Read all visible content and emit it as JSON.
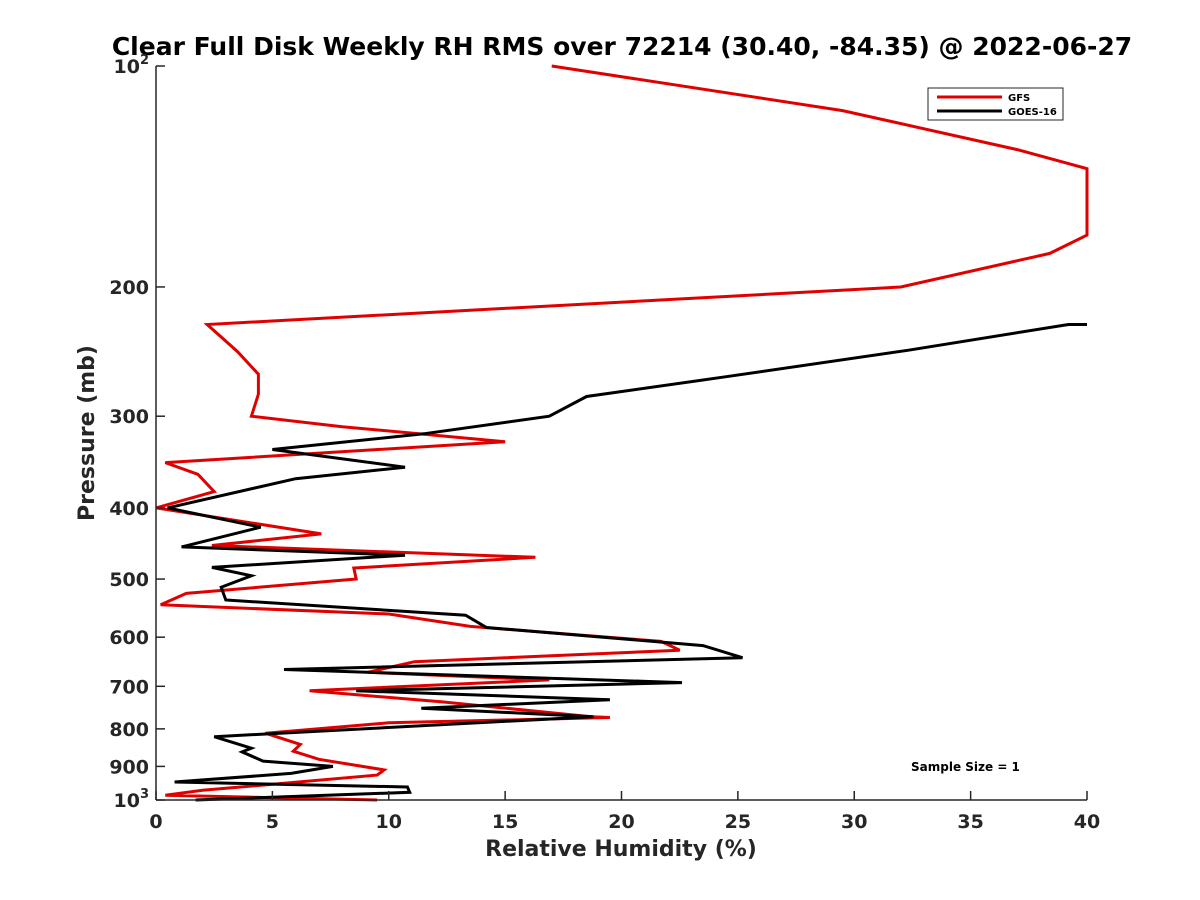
{
  "chart_data": {
    "type": "line",
    "title": "Clear Full Disk Weekly RH RMS over 72214 (30.40, -84.35) @ 2022-06-27",
    "xlabel": "Relative Humidity (%)",
    "ylabel": "Pressure (mb)",
    "xlim": [
      0,
      40
    ],
    "ylim": [
      1000,
      100
    ],
    "y_scale": "log",
    "y_reversed": true,
    "x_ticks": [
      0,
      5,
      10,
      15,
      20,
      25,
      30,
      35,
      40
    ],
    "x_tick_labels": [
      "0",
      "5",
      "10",
      "15",
      "20",
      "25",
      "30",
      "35",
      "40"
    ],
    "y_ticks": [
      {
        "value": 100,
        "base": "10",
        "exp": "2"
      },
      {
        "value": 200,
        "label": "200"
      },
      {
        "value": 300,
        "label": "300"
      },
      {
        "value": 400,
        "label": "400"
      },
      {
        "value": 500,
        "label": "500"
      },
      {
        "value": 600,
        "label": "600"
      },
      {
        "value": 700,
        "label": "700"
      },
      {
        "value": 800,
        "label": "800"
      },
      {
        "value": 900,
        "label": "900"
      },
      {
        "value": 1000,
        "base": "10",
        "exp": "3"
      }
    ],
    "legend_position": "top-right",
    "annotation": "Sample Size = 1",
    "series": [
      {
        "name": "GFS",
        "color": "#e00000",
        "points": [
          [
            17,
            100
          ],
          [
            29.5,
            115
          ],
          [
            37,
            130
          ],
          [
            40,
            138
          ],
          [
            40,
            170
          ],
          [
            38.4,
            180
          ],
          [
            32,
            200
          ],
          [
            2.2,
            225
          ],
          [
            3.5,
            245
          ],
          [
            4.4,
            263
          ],
          [
            4.4,
            280
          ],
          [
            4.1,
            300
          ],
          [
            8,
            310
          ],
          [
            15,
            325
          ],
          [
            0.4,
            347
          ],
          [
            1.8,
            360
          ],
          [
            2.5,
            380
          ],
          [
            0,
            400
          ],
          [
            7.1,
            434
          ],
          [
            2.4,
            450
          ],
          [
            16.3,
            467
          ],
          [
            8.5,
            483
          ],
          [
            8.6,
            500
          ],
          [
            1.3,
            523
          ],
          [
            0.2,
            542
          ],
          [
            10,
            558
          ],
          [
            13.5,
            580
          ],
          [
            21.7,
            608
          ],
          [
            22.5,
            625
          ],
          [
            11.1,
            648
          ],
          [
            9.1,
            670
          ],
          [
            16.9,
            686
          ],
          [
            6.6,
            710
          ],
          [
            12.3,
            735
          ],
          [
            18.7,
            770
          ],
          [
            19.5,
            772
          ],
          [
            10,
            785
          ],
          [
            4.7,
            811
          ],
          [
            6.2,
            840
          ],
          [
            5.9,
            858
          ],
          [
            7,
            880
          ],
          [
            9.8,
            910
          ],
          [
            9.5,
            925
          ],
          [
            2,
            970
          ],
          [
            0.4,
            985
          ],
          [
            9.5,
            1000
          ]
        ]
      },
      {
        "name": "GOES-16",
        "color": "#000000",
        "points": [
          [
            40,
            225
          ],
          [
            39.2,
            225
          ],
          [
            32.3,
            244
          ],
          [
            24.5,
            265
          ],
          [
            18.5,
            282
          ],
          [
            16.9,
            300
          ],
          [
            11.5,
            317
          ],
          [
            5,
            333
          ],
          [
            10.7,
            352
          ],
          [
            6,
            365
          ],
          [
            0.5,
            400
          ],
          [
            4.5,
            425
          ],
          [
            1.1,
            452
          ],
          [
            10.7,
            464
          ],
          [
            2.4,
            482
          ],
          [
            4.1,
            495
          ],
          [
            2.8,
            513
          ],
          [
            3,
            534
          ],
          [
            13.3,
            560
          ],
          [
            14.2,
            582
          ],
          [
            23.5,
            616
          ],
          [
            25.2,
            640
          ],
          [
            5.5,
            664
          ],
          [
            22.6,
            692
          ],
          [
            8.6,
            710
          ],
          [
            19.5,
            730
          ],
          [
            11.4,
            750
          ],
          [
            18.8,
            770
          ],
          [
            2.5,
            820
          ],
          [
            4.1,
            850
          ],
          [
            3.7,
            860
          ],
          [
            4.6,
            885
          ],
          [
            7.6,
            900
          ],
          [
            5.8,
            920
          ],
          [
            0.8,
            945
          ],
          [
            10.8,
            960
          ],
          [
            10.9,
            976
          ],
          [
            1.7,
            1000
          ]
        ]
      }
    ]
  }
}
